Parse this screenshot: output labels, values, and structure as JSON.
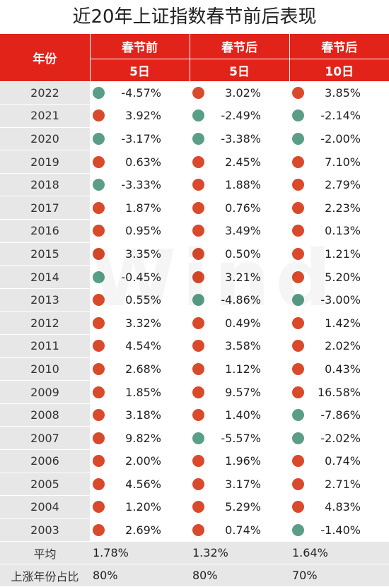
{
  "title": "近20年上证指数春节前后表现",
  "header": {
    "year_label": "年份",
    "groups": [
      "春节前",
      "春节后",
      "春节后"
    ],
    "windows": [
      "5日",
      "5日",
      "10日"
    ]
  },
  "colors": {
    "up": "#d9492b",
    "down": "#5a9e87",
    "header_bg": "#e2231a",
    "year_bg": "#e7e7e7"
  },
  "rows": [
    {
      "year": "2022",
      "values": [
        "-4.57%",
        "3.02%",
        "3.85%"
      ]
    },
    {
      "year": "2021",
      "values": [
        "3.92%",
        "-2.49%",
        "-2.14%"
      ]
    },
    {
      "year": "2020",
      "values": [
        "-3.17%",
        "-3.38%",
        "-2.00%"
      ]
    },
    {
      "year": "2019",
      "values": [
        "0.63%",
        "2.45%",
        "7.10%"
      ]
    },
    {
      "year": "2018",
      "values": [
        "-3.33%",
        "1.88%",
        "2.79%"
      ]
    },
    {
      "year": "2017",
      "values": [
        "1.87%",
        "0.76%",
        "2.23%"
      ]
    },
    {
      "year": "2016",
      "values": [
        "0.95%",
        "3.49%",
        "0.13%"
      ]
    },
    {
      "year": "2015",
      "values": [
        "3.35%",
        "0.50%",
        "1.21%"
      ]
    },
    {
      "year": "2014",
      "values": [
        "-0.45%",
        "3.21%",
        "5.20%"
      ]
    },
    {
      "year": "2013",
      "values": [
        "0.55%",
        "-4.86%",
        "-3.00%"
      ]
    },
    {
      "year": "2012",
      "values": [
        "3.32%",
        "0.49%",
        "1.42%"
      ]
    },
    {
      "year": "2011",
      "values": [
        "4.54%",
        "3.58%",
        "2.02%"
      ]
    },
    {
      "year": "2010",
      "values": [
        "2.68%",
        "1.12%",
        "0.43%"
      ]
    },
    {
      "year": "2009",
      "values": [
        "1.85%",
        "9.57%",
        "16.58%"
      ]
    },
    {
      "year": "2008",
      "values": [
        "3.18%",
        "1.40%",
        "-7.86%"
      ]
    },
    {
      "year": "2007",
      "values": [
        "9.82%",
        "-5.57%",
        "-2.02%"
      ]
    },
    {
      "year": "2006",
      "values": [
        "2.00%",
        "1.96%",
        "0.74%"
      ]
    },
    {
      "year": "2005",
      "values": [
        "4.56%",
        "3.17%",
        "2.71%"
      ]
    },
    {
      "year": "2004",
      "values": [
        "1.20%",
        "5.29%",
        "4.83%"
      ]
    },
    {
      "year": "2003",
      "values": [
        "2.69%",
        "0.74%",
        "-1.40%"
      ]
    }
  ],
  "summary": [
    {
      "label": "平均",
      "values": [
        "1.78%",
        "1.32%",
        "1.64%"
      ]
    },
    {
      "label": "上涨年份占比",
      "values": [
        "80%",
        "80%",
        "70%"
      ]
    }
  ],
  "watermark": "Wind",
  "chart_data": {
    "type": "table",
    "title": "近20年上证指数春节前后表现",
    "columns": [
      "年份",
      "春节前 5日",
      "春节后 5日",
      "春节后 10日"
    ],
    "series": [
      {
        "name": "春节前 5日",
        "values": [
          -4.57,
          3.92,
          -3.17,
          0.63,
          -3.33,
          1.87,
          0.95,
          3.35,
          -0.45,
          0.55,
          3.32,
          4.54,
          2.68,
          1.85,
          3.18,
          9.82,
          2.0,
          4.56,
          1.2,
          2.69
        ]
      },
      {
        "name": "春节后 5日",
        "values": [
          3.02,
          -2.49,
          -3.38,
          2.45,
          1.88,
          0.76,
          3.49,
          0.5,
          3.21,
          -4.86,
          0.49,
          3.58,
          1.12,
          9.57,
          1.4,
          -5.57,
          1.96,
          3.17,
          5.29,
          0.74
        ]
      },
      {
        "name": "春节后 10日",
        "values": [
          3.85,
          -2.14,
          -2.0,
          7.1,
          2.79,
          2.23,
          0.13,
          1.21,
          5.2,
          -3.0,
          1.42,
          2.02,
          0.43,
          16.58,
          -7.86,
          -2.02,
          0.74,
          2.71,
          4.83,
          -1.4
        ]
      }
    ],
    "categories": [
      "2022",
      "2021",
      "2020",
      "2019",
      "2018",
      "2017",
      "2016",
      "2015",
      "2014",
      "2013",
      "2012",
      "2011",
      "2010",
      "2009",
      "2008",
      "2007",
      "2006",
      "2005",
      "2004",
      "2003"
    ]
  }
}
